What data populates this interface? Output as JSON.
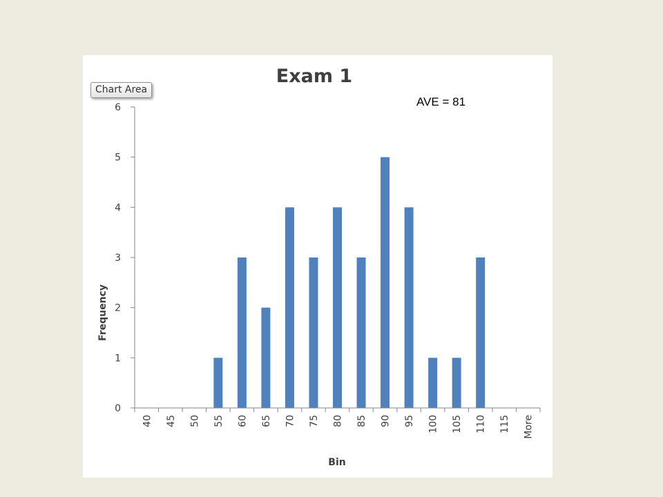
{
  "annotation": "AVE = 81",
  "tooltip": "Chart Area",
  "colors": {
    "bar": "#4f81bd",
    "background": "#eeebe1",
    "panel": "#ffffff"
  },
  "chart_data": {
    "type": "bar",
    "title": "Exam 1",
    "xlabel": "Bin",
    "ylabel": "Frequency",
    "categories": [
      "40",
      "45",
      "50",
      "55",
      "60",
      "65",
      "70",
      "75",
      "80",
      "85",
      "90",
      "95",
      "100",
      "105",
      "110",
      "115",
      "More"
    ],
    "series": [
      {
        "values": [
          0,
          0,
          0,
          1,
          3,
          2,
          4,
          3,
          4,
          3,
          5,
          4,
          1,
          1,
          3,
          0,
          0
        ]
      }
    ],
    "ylim": [
      0,
      6
    ],
    "yticks": [
      0,
      1,
      2,
      3,
      4,
      5,
      6
    ],
    "grid": false,
    "legend": "none"
  }
}
